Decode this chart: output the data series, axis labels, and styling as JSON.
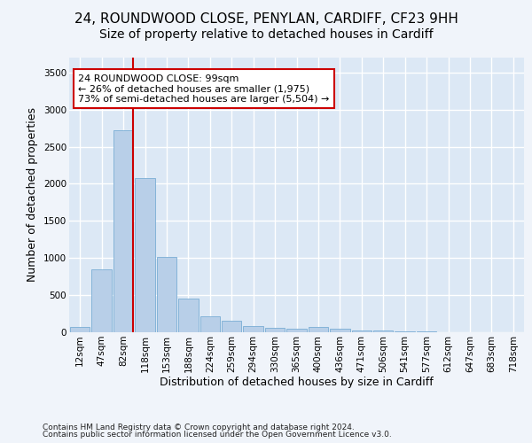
{
  "title_line1": "24, ROUNDWOOD CLOSE, PENYLAN, CARDIFF, CF23 9HH",
  "title_line2": "Size of property relative to detached houses in Cardiff",
  "xlabel": "Distribution of detached houses by size in Cardiff",
  "ylabel": "Number of detached properties",
  "footnote1": "Contains HM Land Registry data © Crown copyright and database right 2024.",
  "footnote2": "Contains public sector information licensed under the Open Government Licence v3.0.",
  "bar_labels": [
    "12sqm",
    "47sqm",
    "82sqm",
    "118sqm",
    "153sqm",
    "188sqm",
    "224sqm",
    "259sqm",
    "294sqm",
    "330sqm",
    "365sqm",
    "400sqm",
    "436sqm",
    "471sqm",
    "506sqm",
    "541sqm",
    "577sqm",
    "612sqm",
    "647sqm",
    "683sqm",
    "718sqm"
  ],
  "bar_values": [
    75,
    850,
    2720,
    2080,
    1020,
    455,
    210,
    150,
    80,
    55,
    50,
    70,
    45,
    25,
    20,
    10,
    8,
    5,
    3,
    2,
    1
  ],
  "bar_color": "#b8cfe8",
  "bar_edge_color": "#7aadd4",
  "vline_color": "#cc0000",
  "vline_x_index": 2,
  "annotation_text": "24 ROUNDWOOD CLOSE: 99sqm\n← 26% of detached houses are smaller (1,975)\n73% of semi-detached houses are larger (5,504) →",
  "annotation_box_facecolor": "#ffffff",
  "annotation_box_edgecolor": "#cc0000",
  "ylim": [
    0,
    3700
  ],
  "yticks": [
    0,
    500,
    1000,
    1500,
    2000,
    2500,
    3000,
    3500
  ],
  "bg_color": "#dce8f5",
  "fig_color": "#f0f4fa",
  "grid_color": "#ffffff",
  "title1_fontsize": 11,
  "title2_fontsize": 10,
  "tick_fontsize": 7.5,
  "axis_label_fontsize": 9,
  "annotation_fontsize": 8,
  "footnote_fontsize": 6.5
}
